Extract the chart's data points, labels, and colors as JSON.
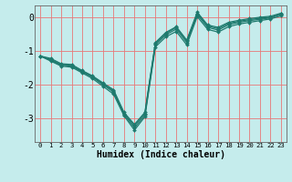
{
  "xlabel": "Humidex (Indice chaleur)",
  "bg_color": "#c5ecec",
  "grid_color": "#e87878",
  "line_color": "#1e7a6e",
  "xlim": [
    -0.5,
    23.5
  ],
  "ylim": [
    -3.7,
    0.35
  ],
  "xticks": [
    0,
    1,
    2,
    3,
    4,
    5,
    6,
    7,
    8,
    9,
    10,
    11,
    12,
    13,
    14,
    15,
    16,
    17,
    18,
    19,
    20,
    21,
    22,
    23
  ],
  "yticks": [
    0,
    -1,
    -2,
    -3
  ],
  "lines": [
    {
      "x": [
        0,
        1,
        2,
        3,
        4,
        5,
        6,
        7,
        8,
        9,
        10,
        11,
        12,
        13,
        14,
        15,
        16,
        17,
        18,
        19,
        20,
        21,
        22,
        23
      ],
      "y": [
        -1.15,
        -1.28,
        -1.42,
        -1.45,
        -1.62,
        -1.78,
        -2.0,
        -2.22,
        -2.88,
        -3.28,
        -2.9,
        -0.82,
        -0.52,
        -0.35,
        -0.75,
        0.08,
        -0.3,
        -0.38,
        -0.22,
        -0.15,
        -0.1,
        -0.06,
        -0.02,
        0.08
      ]
    },
    {
      "x": [
        0,
        1,
        2,
        3,
        4,
        5,
        6,
        7,
        8,
        9,
        10,
        11,
        12,
        13,
        14,
        15,
        16,
        17,
        18,
        19,
        20,
        21,
        22,
        23
      ],
      "y": [
        -1.15,
        -1.3,
        -1.45,
        -1.48,
        -1.65,
        -1.82,
        -2.05,
        -2.28,
        -2.92,
        -3.35,
        -2.95,
        -0.88,
        -0.58,
        -0.42,
        -0.82,
        0.02,
        -0.36,
        -0.44,
        -0.28,
        -0.2,
        -0.15,
        -0.1,
        -0.05,
        0.04
      ]
    },
    {
      "x": [
        0,
        1,
        2,
        3,
        4,
        5,
        6,
        7,
        8,
        9,
        10,
        11,
        12,
        13,
        14,
        15,
        16,
        17,
        18,
        19,
        20,
        21,
        22,
        23
      ],
      "y": [
        -1.15,
        -1.25,
        -1.4,
        -1.43,
        -1.6,
        -1.76,
        -1.98,
        -2.18,
        -2.85,
        -3.22,
        -2.85,
        -0.78,
        -0.48,
        -0.3,
        -0.7,
        0.12,
        -0.26,
        -0.34,
        -0.18,
        -0.12,
        -0.07,
        -0.03,
        0.0,
        0.1
      ]
    },
    {
      "x": [
        0,
        1,
        2,
        3,
        4,
        5,
        6,
        7,
        8,
        9,
        10,
        11,
        12,
        13,
        14,
        15,
        16,
        17,
        18,
        19,
        20,
        21,
        22,
        23
      ],
      "y": [
        -1.15,
        -1.22,
        -1.38,
        -1.4,
        -1.58,
        -1.74,
        -1.95,
        -2.15,
        -2.82,
        -3.18,
        -2.82,
        -0.75,
        -0.45,
        -0.28,
        -0.68,
        0.15,
        -0.23,
        -0.3,
        -0.15,
        -0.09,
        -0.04,
        0.0,
        0.03,
        0.12
      ]
    }
  ]
}
